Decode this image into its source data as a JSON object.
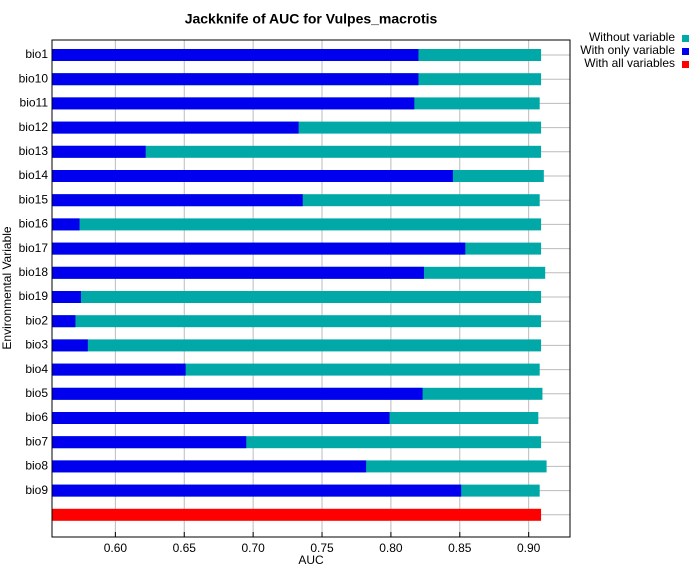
{
  "chart_data": {
    "type": "bar",
    "orientation": "horizontal",
    "title": "Jackknife of AUC for Vulpes_macrotis",
    "x_label": "AUC",
    "y_label": "Environmental Variable",
    "categories": [
      "bio1",
      "bio10",
      "bio11",
      "bio12",
      "bio13",
      "bio14",
      "bio15",
      "bio16",
      "bio17",
      "bio18",
      "bio19",
      "bio2",
      "bio3",
      "bio4",
      "bio5",
      "bio6",
      "bio7",
      "bio8",
      "bio9",
      null
    ],
    "series": [
      {
        "name": "Without variable",
        "color": "#00a8a8",
        "values": [
          0.909,
          0.909,
          0.908,
          0.909,
          0.909,
          0.911,
          0.908,
          0.909,
          0.909,
          0.912,
          0.909,
          0.909,
          0.909,
          0.908,
          0.91,
          0.907,
          0.909,
          0.913,
          0.908,
          null
        ]
      },
      {
        "name": "With only variable",
        "color": "#0000ee",
        "values": [
          0.82,
          0.82,
          0.817,
          0.733,
          0.622,
          0.845,
          0.736,
          0.574,
          0.854,
          0.824,
          0.575,
          0.571,
          0.58,
          0.651,
          0.823,
          0.799,
          0.695,
          0.782,
          0.851,
          null
        ]
      },
      {
        "name": "With all variables",
        "color": "#ff0000",
        "values": [
          null,
          null,
          null,
          null,
          null,
          null,
          null,
          null,
          null,
          null,
          null,
          null,
          null,
          null,
          null,
          null,
          null,
          null,
          null,
          0.909
        ]
      }
    ],
    "xlim": [
      0.554,
      0.93
    ],
    "xticks": [
      {
        "value": 0.6,
        "label": "0.60"
      },
      {
        "value": 0.65,
        "label": "0.65"
      },
      {
        "value": 0.7,
        "label": "0.70"
      },
      {
        "value": 0.75,
        "label": "0.75"
      },
      {
        "value": 0.8,
        "label": "0.80"
      },
      {
        "value": 0.85,
        "label": "0.85"
      },
      {
        "value": 0.9,
        "label": "0.90"
      }
    ],
    "grid": true,
    "legend": "top-right"
  }
}
